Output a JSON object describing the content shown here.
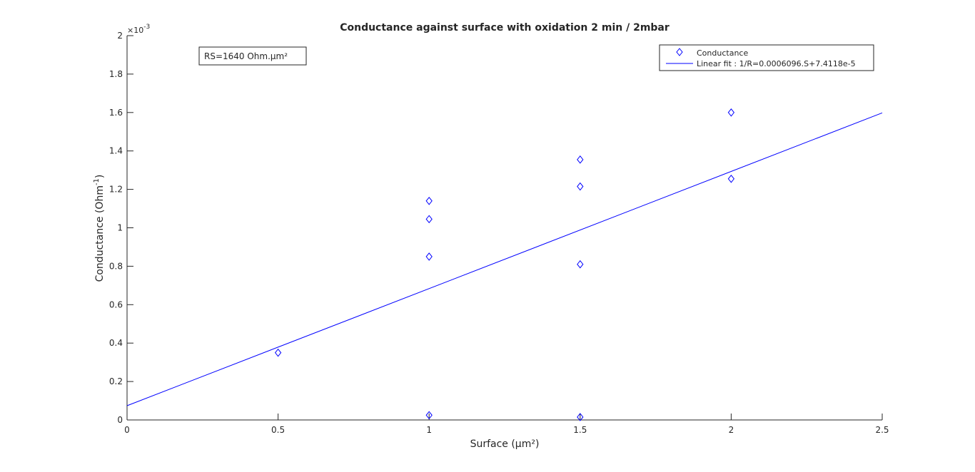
{
  "chart_data": {
    "type": "scatter",
    "title": "Conductance against surface with oxidation 2 min / 2mbar",
    "xlabel": "Surface (µm²)",
    "ylabel_main": "Conductance (Ohm",
    "ylabel_sup": "-1",
    "ylabel_end": ")",
    "xlim": [
      0,
      2.5
    ],
    "ylim": [
      0,
      0.002
    ],
    "x_ticks": [
      0,
      0.5,
      1,
      1.5,
      2,
      2.5
    ],
    "x_tick_labels": [
      "0",
      "0.5",
      "1",
      "1.5",
      "2",
      "2.5"
    ],
    "y_ticks": [
      0,
      0.0002,
      0.0004,
      0.0006,
      0.0008,
      0.001,
      0.0012,
      0.0014,
      0.0016,
      0.0018,
      0.002
    ],
    "y_tick_labels": [
      "0",
      "0.2",
      "0.4",
      "0.6",
      "0.8",
      "1",
      "1.2",
      "1.4",
      "1.6",
      "1.8",
      "2"
    ],
    "y_exponent_base": "×10",
    "y_exponent_power": "-3",
    "annotation": "RS=1640 Ohm.µm²",
    "grid": false,
    "legend_position": "top-right",
    "series": [
      {
        "name": "Conductance",
        "marker": "diamond",
        "color": "#0000ff",
        "points": [
          {
            "x": 0.5,
            "y": 0.00035
          },
          {
            "x": 1,
            "y": 0.00114
          },
          {
            "x": 1,
            "y": 0.001045
          },
          {
            "x": 1,
            "y": 0.00085
          },
          {
            "x": 1,
            "y": 2.5e-05
          },
          {
            "x": 1.5,
            "y": 0.001355
          },
          {
            "x": 1.5,
            "y": 0.001215
          },
          {
            "x": 1.5,
            "y": 0.00081
          },
          {
            "x": 1.5,
            "y": 1.5e-05
          },
          {
            "x": 2,
            "y": 0.0016
          },
          {
            "x": 2,
            "y": 0.001255
          }
        ]
      },
      {
        "name": "Linear fit : 1/R=0.0006096.S+7.4118e-5",
        "type": "line",
        "color": "#0000ff",
        "slope": 0.0006096,
        "intercept": 7.4118e-05,
        "x_range": [
          0,
          2.5
        ]
      }
    ]
  }
}
